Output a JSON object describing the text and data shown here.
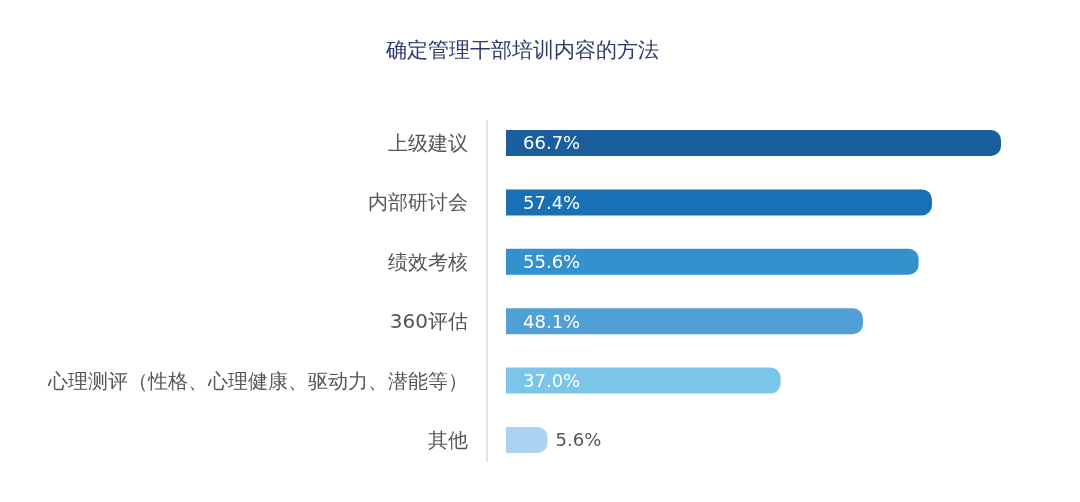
{
  "chart_data": {
    "type": "bar",
    "orientation": "horizontal",
    "title": "确定管理干部培训内容的方法",
    "categories": [
      "上级建议",
      "内部研讨会",
      "绩效考核",
      "360评估",
      "心理测评（性格、心理健康、驱动力、潜能等）",
      "其他"
    ],
    "values": [
      66.7,
      57.4,
      55.6,
      48.1,
      37.0,
      5.6
    ],
    "colors": [
      "#1b5e9e",
      "#1a70b5",
      "#3391cd",
      "#509fd5",
      "#7cc5ea",
      "#a9d3f0"
    ],
    "value_labels": [
      "66.7%",
      "57.4%",
      "55.6%",
      "48.1%",
      "37.0%",
      "5.6%"
    ]
  }
}
